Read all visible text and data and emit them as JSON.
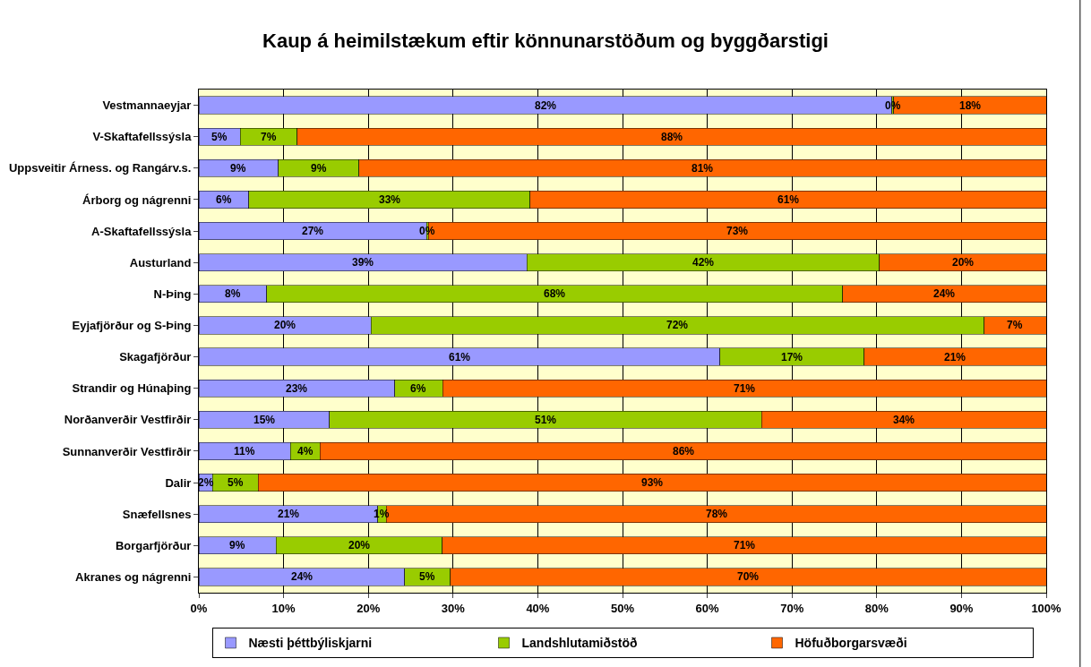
{
  "chart_data": {
    "type": "bar",
    "orientation": "horizontal",
    "stacked": true,
    "title": "Kaup á heimilstækum eftir könnunarstöðum og byggðarstigi",
    "categories": [
      "Vestmannaeyjar",
      "V-Skaftafellssýsla",
      "Uppsveitir Árness. og Rangárv.s.",
      "Árborg og nágrenni",
      "A-Skaftafellssýsla",
      "Austurland",
      "N-Þing",
      "Eyjafjörður og S-Þing",
      "Skagafjörður",
      "Strandir og Húnaþing",
      "Norðanverðir Vestfirðir",
      "Sunnanverðir Vestfirðir",
      "Dalir",
      "Snæfellsnes",
      "Borgarfjörður",
      "Akranes og nágrenni"
    ],
    "series": [
      {
        "name": "Næsti þéttbýliskjarni",
        "color": "#9999ff",
        "values": [
          81.8,
          4.9,
          9.4,
          5.9,
          26.9,
          38.7,
          8.0,
          20.3,
          61.5,
          23.1,
          15.4,
          10.8,
          1.6,
          21.1,
          9.1,
          24.3
        ],
        "value_labels": [
          "82%",
          "5%",
          "9%",
          "6%",
          "27%",
          "39%",
          "8%",
          "20%",
          "61%",
          "23%",
          "15%",
          "11%",
          "2%",
          "21%",
          "9%",
          "24%"
        ]
      },
      {
        "name": "Landshlutamiðstöð",
        "color": "#99cc00",
        "values": [
          0.2,
          6.7,
          9.5,
          33.2,
          0.2,
          41.6,
          68.0,
          72.4,
          17.0,
          5.7,
          51.0,
          3.5,
          5.4,
          1.0,
          19.6,
          5.4
        ],
        "value_labels": [
          "0%",
          "7%",
          "9%",
          "33%",
          "0%",
          "42%",
          "68%",
          "72%",
          "17%",
          "6%",
          "51%",
          "4%",
          "5%",
          "1%",
          "20%",
          "5%"
        ]
      },
      {
        "name": "Höfuðborgarsvæði",
        "color": "#ff6600",
        "values": [
          18.0,
          88.4,
          81.1,
          60.9,
          72.9,
          19.7,
          24.0,
          7.3,
          21.5,
          71.2,
          33.6,
          85.7,
          93.0,
          77.9,
          71.3,
          70.3
        ],
        "value_labels": [
          "18%",
          "88%",
          "81%",
          "61%",
          "73%",
          "20%",
          "24%",
          "7%",
          "21%",
          "71%",
          "34%",
          "86%",
          "93%",
          "78%",
          "71%",
          "70%"
        ]
      }
    ],
    "xlim": [
      0,
      100
    ],
    "xticks": [
      {
        "value": 0,
        "label": "0%"
      },
      {
        "value": 10,
        "label": "10%"
      },
      {
        "value": 20,
        "label": "20%"
      },
      {
        "value": 30,
        "label": "30%"
      },
      {
        "value": 40,
        "label": "40%"
      },
      {
        "value": 50,
        "label": "50%"
      },
      {
        "value": 60,
        "label": "60%"
      },
      {
        "value": 70,
        "label": "70%"
      },
      {
        "value": 80,
        "label": "80%"
      },
      {
        "value": 90,
        "label": "90%"
      },
      {
        "value": 100,
        "label": "100%"
      }
    ],
    "grid": "x",
    "legend": "bottom"
  }
}
